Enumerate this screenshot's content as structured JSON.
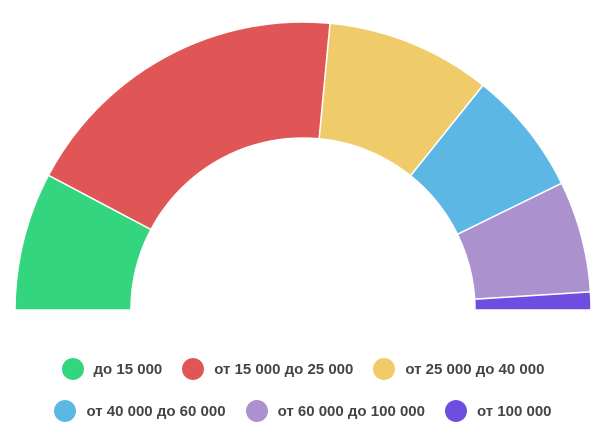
{
  "chart_data": {
    "type": "pie",
    "variant": "semi-donut",
    "title": "",
    "unit": "%",
    "slices": [
      {
        "label": "до 15 000",
        "value": 15.5,
        "color": "#33d57f"
      },
      {
        "label": "от 15 000 до 25 000",
        "value": 37.5,
        "color": "#e05555"
      },
      {
        "label": "от 25 000 до 40 000",
        "value": 18.5,
        "color": "#f0cb6a"
      },
      {
        "label": "от 40 000 до 60 000",
        "value": 14.0,
        "color": "#5db7e5"
      },
      {
        "label": "от 60 000 до 100 000",
        "value": 12.5,
        "color": "#ab91cd"
      },
      {
        "label": "от 100 000",
        "value": 2.0,
        "color": "#6f4de0"
      }
    ],
    "legend_position": "bottom",
    "grid": false
  }
}
